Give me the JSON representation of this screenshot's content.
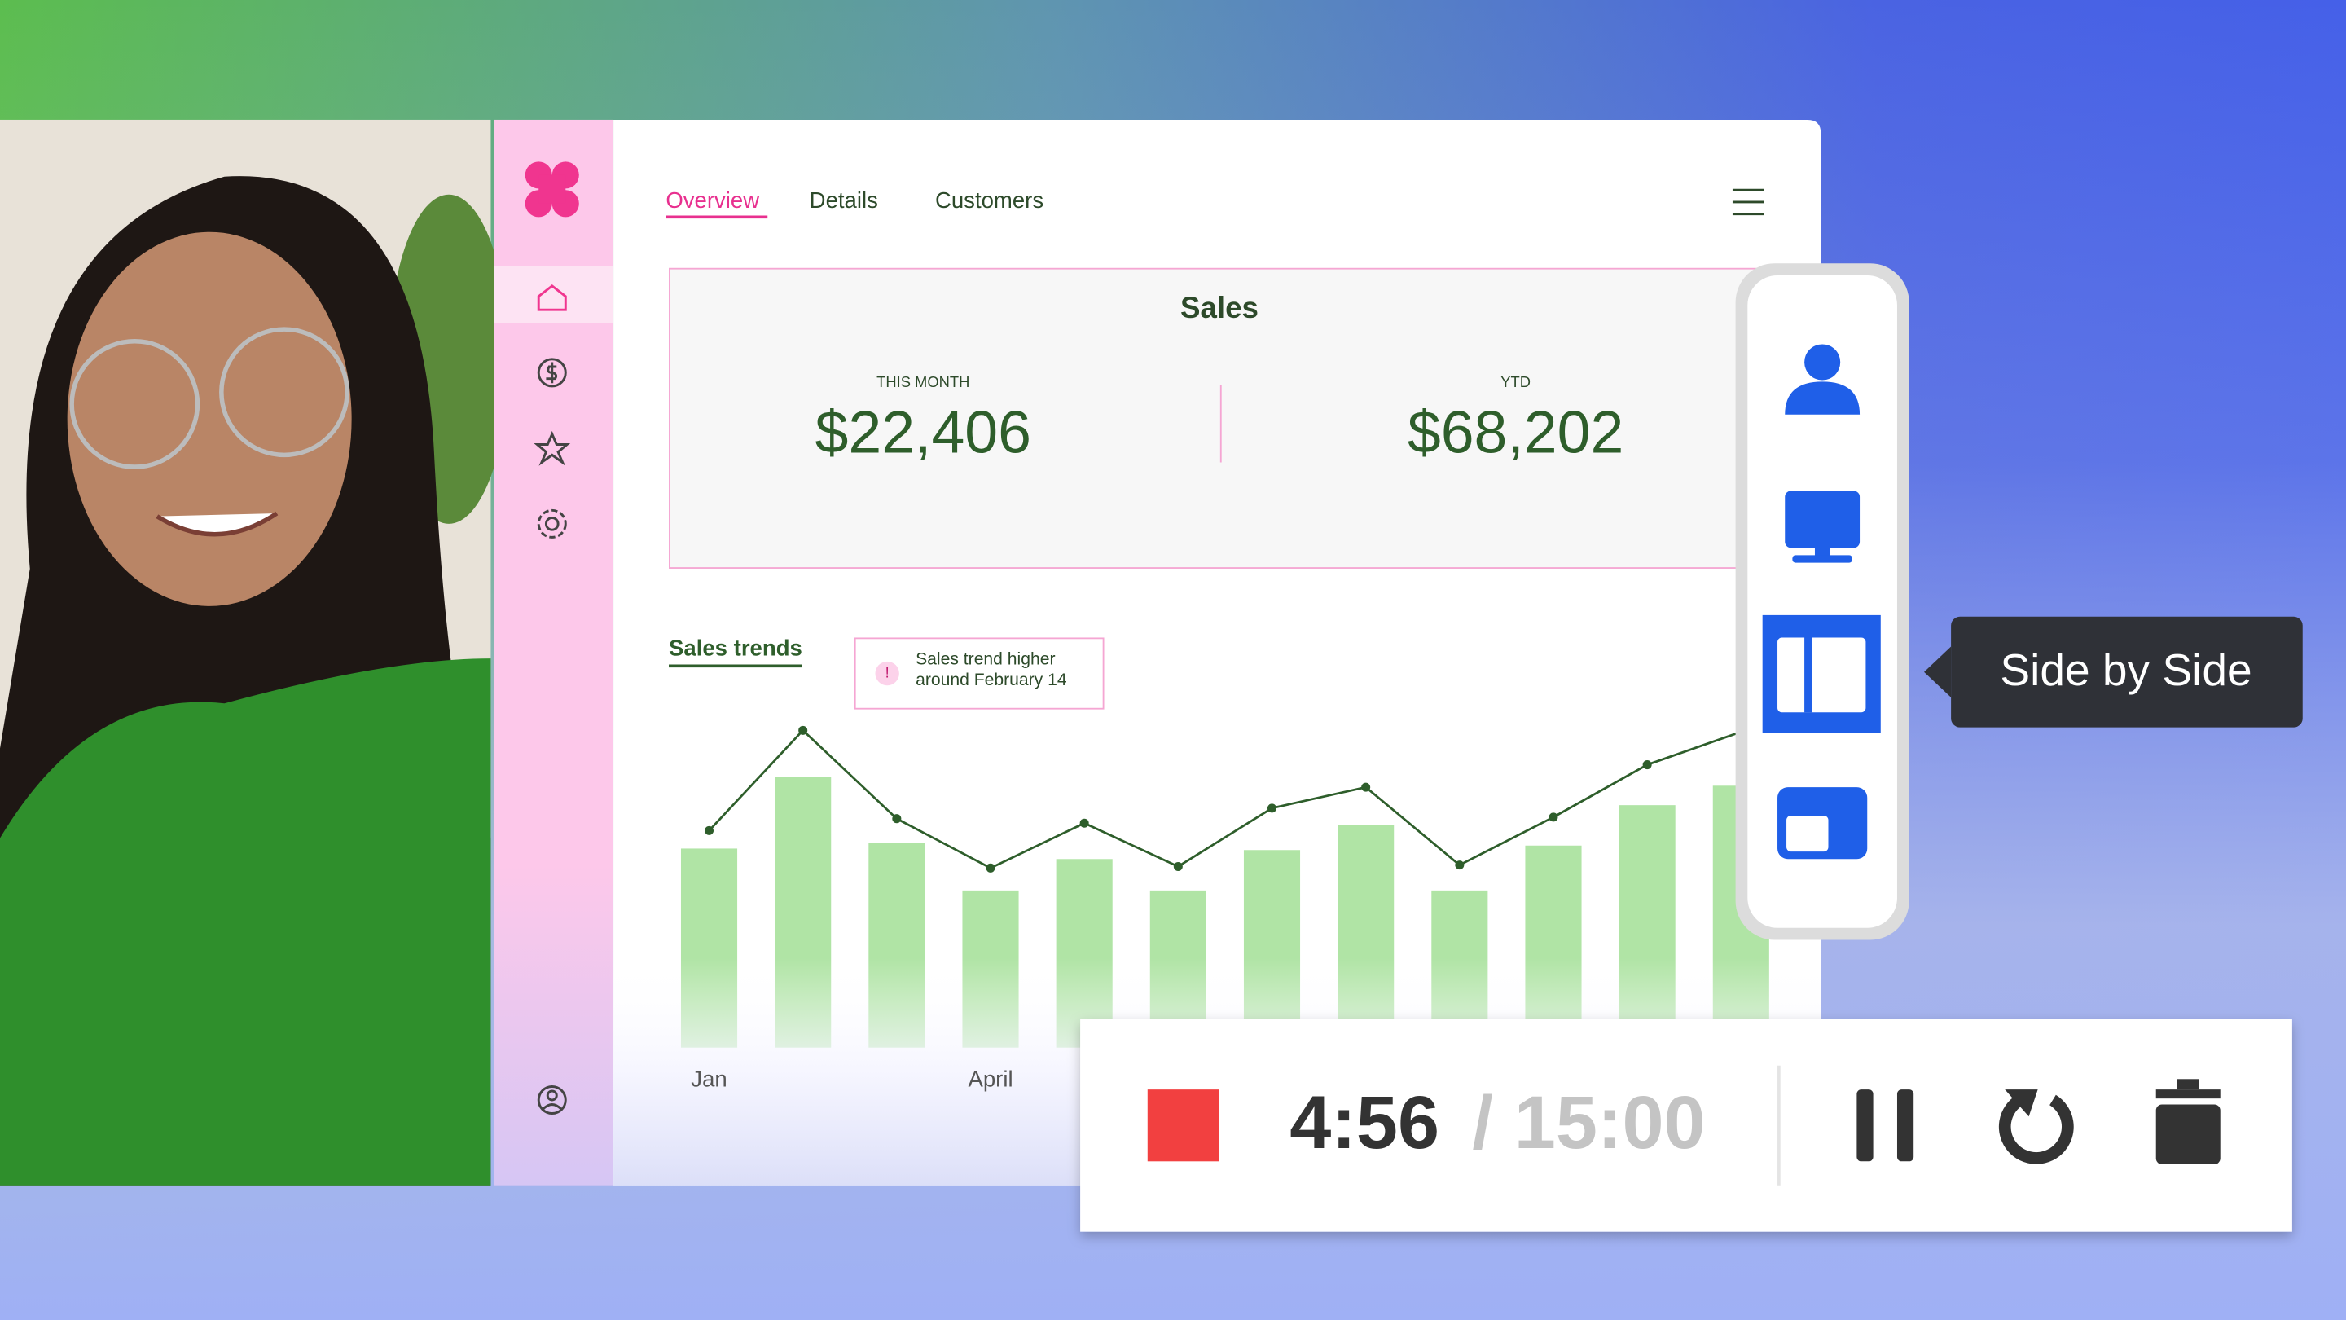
{
  "nav": {
    "tabs": [
      "Overview",
      "Details",
      "Customers"
    ]
  },
  "sales": {
    "title": "Sales",
    "this_month": {
      "label": "THIS MONTH",
      "value": "$22,406"
    },
    "ytd": {
      "label": "YTD",
      "value": "$68,202"
    }
  },
  "chart_data": {
    "type": "bar",
    "title": "Sales trends",
    "annotation": "Sales trend higher around February 14",
    "categories": [
      "Jan",
      null,
      null,
      "April",
      null,
      null,
      null,
      null,
      null,
      null,
      null,
      null
    ],
    "series": [
      {
        "type": "bar",
        "color": "#b0e4a5",
        "values": [
          133,
          181,
          137,
          105,
          126,
          105,
          132,
          149,
          105,
          135,
          162,
          175
        ]
      },
      {
        "type": "line",
        "color": "#2e5e2b",
        "values": [
          145,
          212,
          153,
          120,
          150,
          121,
          160,
          174,
          122,
          154,
          189,
          211
        ]
      }
    ],
    "ylim": [
      0,
      250
    ]
  },
  "layout_menu": {
    "tooltip": "Side by Side"
  },
  "recorder": {
    "elapsed": "4:56",
    "separator": "/",
    "total": "15:00"
  }
}
